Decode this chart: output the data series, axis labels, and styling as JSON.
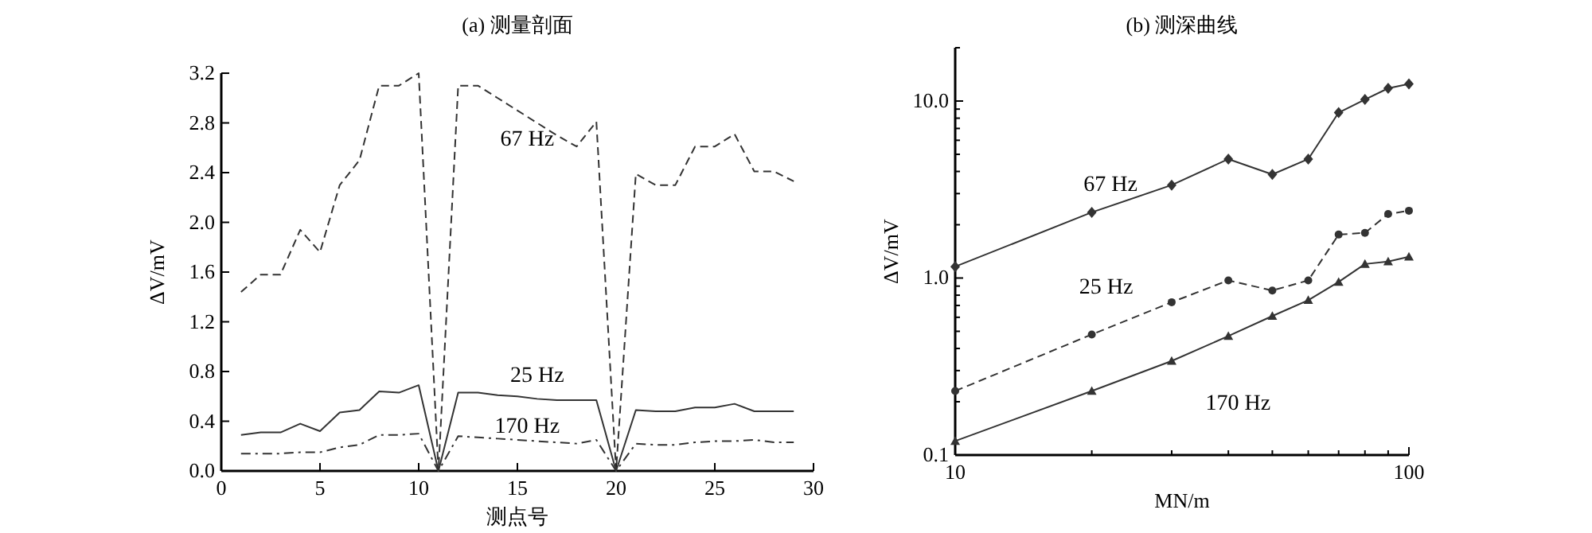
{
  "chart_data": [
    {
      "type": "line",
      "title": "(a) 测量剖面",
      "xlabel": "测点号",
      "ylabel": "ΔV/mV",
      "x": [
        1,
        2,
        3,
        4,
        5,
        6,
        7,
        8,
        9,
        10,
        11,
        12,
        13,
        14,
        15,
        16,
        17,
        18,
        19,
        20,
        21,
        22,
        23,
        24,
        25,
        26,
        27,
        28,
        29
      ],
      "xlim": [
        0,
        30
      ],
      "xticks": [
        0,
        5,
        10,
        15,
        20,
        25,
        30
      ],
      "ylim": [
        0,
        3.2
      ],
      "yticks": [
        {
          "value": 0,
          "label": "0.0"
        },
        {
          "value": 0.4,
          "label": "0.4"
        },
        {
          "value": 0.8,
          "label": "0.8"
        },
        {
          "value": 1.2,
          "label": "1.2"
        },
        {
          "value": 1.6,
          "label": "1.6"
        },
        {
          "value": 2.0,
          "label": "2.0"
        },
        {
          "value": 2.4,
          "label": "2.4"
        },
        {
          "value": 2.8,
          "label": "2.8"
        },
        {
          "value": 3.2,
          "label": "3.2"
        }
      ],
      "grid": false,
      "marker": "none",
      "series": [
        {
          "name": "67 Hz",
          "color": "#333333",
          "line_style": "dashed",
          "values": [
            1.44,
            1.58,
            1.58,
            1.94,
            1.76,
            2.3,
            2.5,
            3.1,
            3.1,
            3.2,
            0,
            3.1,
            3.1,
            3.0,
            2.9,
            2.8,
            2.7,
            2.61,
            2.81,
            0,
            2.39,
            2.3,
            2.3,
            2.61,
            2.61,
            2.71,
            2.41,
            2.41,
            2.33
          ]
        },
        {
          "name": "25 Hz",
          "color": "#333333",
          "line_style": "solid",
          "values": [
            0.29,
            0.31,
            0.31,
            0.38,
            0.32,
            0.47,
            0.49,
            0.64,
            0.63,
            0.69,
            0,
            0.63,
            0.63,
            0.61,
            0.6,
            0.58,
            0.57,
            0.57,
            0.57,
            0,
            0.49,
            0.48,
            0.48,
            0.51,
            0.51,
            0.54,
            0.48,
            0.48,
            0.48
          ]
        },
        {
          "name": "170 Hz",
          "color": "#333333",
          "line_style": "dotted",
          "values": [
            0.14,
            0.14,
            0.14,
            0.15,
            0.15,
            0.19,
            0.21,
            0.29,
            0.29,
            0.3,
            0,
            0.28,
            0.27,
            0.26,
            0.25,
            0.24,
            0.23,
            0.22,
            0.25,
            0,
            0.22,
            0.21,
            0.21,
            0.23,
            0.24,
            0.24,
            0.25,
            0.23,
            0.23
          ]
        }
      ]
    },
    {
      "type": "line",
      "title": "(b) 测深曲线",
      "xlabel": "MN/m",
      "ylabel": "ΔV/mV",
      "log": "xy",
      "x": [
        10,
        20,
        30,
        40,
        50,
        60,
        70,
        80,
        90,
        100
      ],
      "xlim": [
        10,
        100
      ],
      "xticks": [
        10,
        {
          "value": 20,
          "label": null
        },
        {
          "value": 30,
          "label": null
        },
        {
          "value": 40,
          "label": null
        },
        {
          "value": 50,
          "label": null
        },
        {
          "value": 60,
          "label": null
        },
        {
          "value": 70,
          "label": null
        },
        {
          "value": 80,
          "label": null
        },
        {
          "value": 90,
          "label": null
        },
        100
      ],
      "ylim": [
        0.1,
        20
      ],
      "yticks": [
        0.1,
        {
          "value": 0.2,
          "label": null
        },
        {
          "value": 0.3,
          "label": null
        },
        {
          "value": 0.4,
          "label": null
        },
        {
          "value": 0.5,
          "label": null
        },
        {
          "value": 0.6,
          "label": null
        },
        {
          "value": 0.7,
          "label": null
        },
        {
          "value": 0.8,
          "label": null
        },
        {
          "value": 0.9,
          "label": null
        },
        {
          "value": 1,
          "label": "1.0"
        },
        {
          "value": 2,
          "label": null
        },
        {
          "value": 3,
          "label": null
        },
        {
          "value": 4,
          "label": null
        },
        {
          "value": 5,
          "label": null
        },
        {
          "value": 6,
          "label": null
        },
        {
          "value": 7,
          "label": null
        },
        {
          "value": 8,
          "label": null
        },
        {
          "value": 9,
          "label": null
        },
        {
          "value": 10,
          "label": "10.0"
        },
        {
          "value": 20,
          "label": null
        }
      ],
      "grid": false,
      "series": [
        {
          "name": "67 Hz",
          "color": "#333333",
          "line_style": "solid",
          "marker": "diamond",
          "values": [
            1.16,
            2.35,
            3.35,
            4.7,
            3.85,
            4.7,
            8.6,
            10.2,
            11.8,
            12.5
          ]
        },
        {
          "name": "25 Hz",
          "color": "#333333",
          "line_style": "dashed",
          "marker": "circle",
          "values": [
            0.23,
            0.48,
            0.73,
            0.97,
            0.85,
            0.97,
            1.76,
            1.8,
            2.3,
            2.4
          ]
        },
        {
          "name": "170 Hz",
          "color": "#333333",
          "line_style": "solid",
          "marker": "triangle",
          "values": [
            0.12,
            0.23,
            0.34,
            0.47,
            0.61,
            0.75,
            0.95,
            1.2,
            1.24,
            1.32
          ]
        }
      ]
    }
  ]
}
